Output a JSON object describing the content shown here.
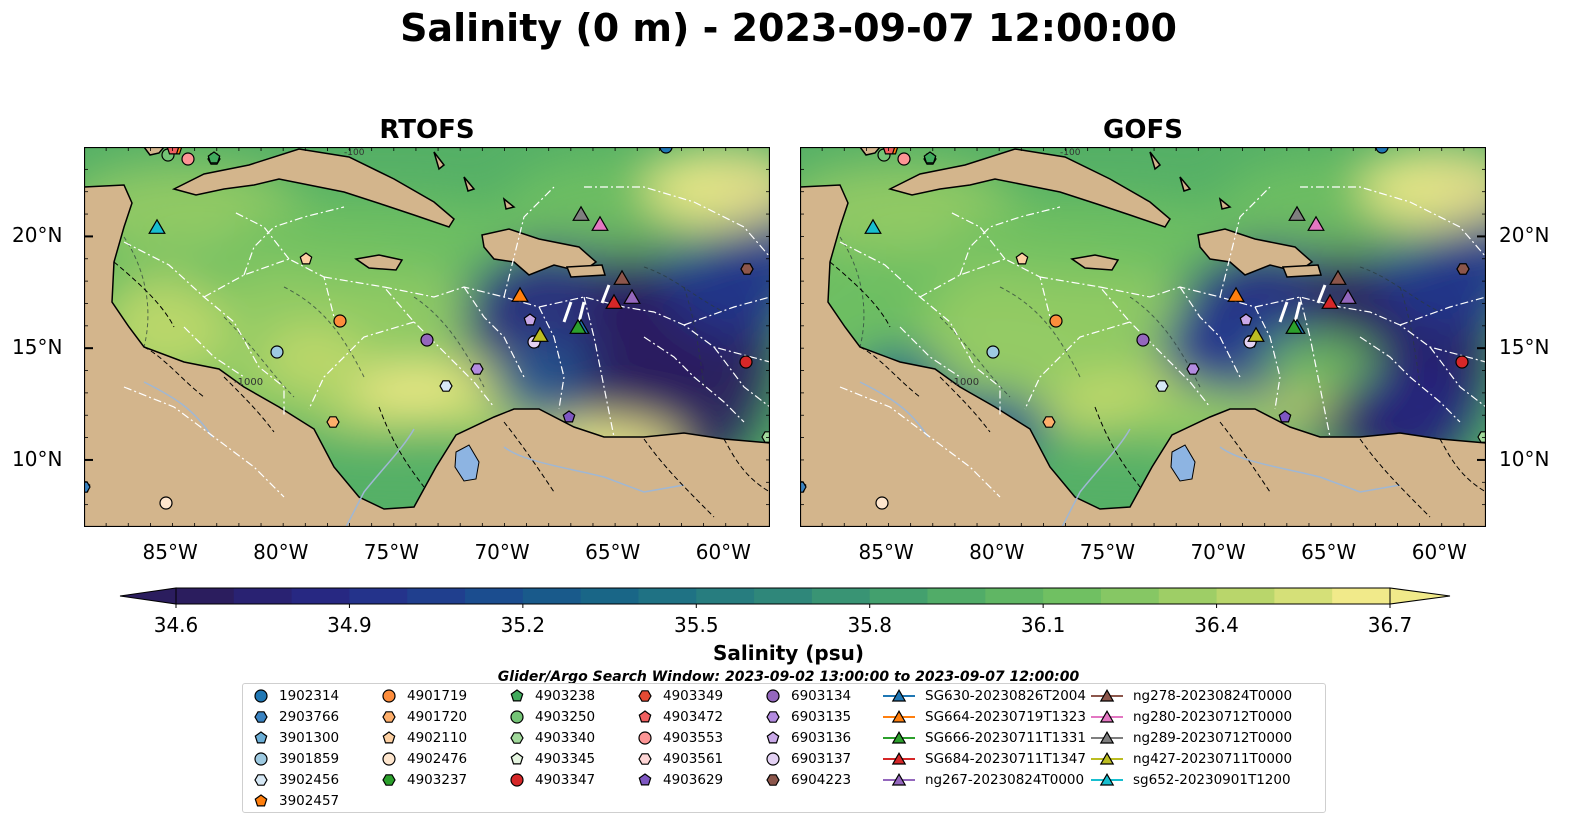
{
  "title": "Salinity (0 m) - 2023-09-07 12:00:00",
  "panels": [
    {
      "title": "RTOFS"
    },
    {
      "title": "GOFS"
    }
  ],
  "lon_ticks": [
    "85°W",
    "80°W",
    "75°W",
    "70°W",
    "65°W",
    "60°W"
  ],
  "lat_ticks": [
    "20°N",
    "15°N",
    "10°N"
  ],
  "colorbar": {
    "label": "Salinity (psu)",
    "ticks": [
      "34.6",
      "34.9",
      "35.2",
      "35.5",
      "35.8",
      "36.1",
      "36.4",
      "36.7"
    ],
    "range": [
      34.6,
      36.7
    ],
    "colormap": [
      "#2b1d5e",
      "#28257f",
      "#23368e",
      "#1b4d8f",
      "#176288",
      "#217683",
      "#2f877a",
      "#3f9c70",
      "#55b066",
      "#70c062",
      "#95cb65",
      "#c2d96c",
      "#f1ea8a"
    ]
  },
  "depth_contour_labels": [
    "-1000",
    "-100"
  ],
  "search_window": "Glider/Argo Search Window: 2023-09-02 13:00:00 to 2023-09-07 12:00:00",
  "colors": {
    "land": "#d3b58c",
    "lake": "#8db4e2",
    "river": "#9fb7d4",
    "coast": "#000000",
    "eez": "#ffffff"
  },
  "legend": {
    "columns": [
      [
        {
          "label": "1902314",
          "marker": "circle",
          "color": "#1f77b4"
        },
        {
          "label": "2903766",
          "marker": "hexagon",
          "color": "#3a83c1"
        },
        {
          "label": "3901300",
          "marker": "pentagon",
          "color": "#6baed6"
        },
        {
          "label": "3901859",
          "marker": "circle",
          "color": "#9ecae1"
        },
        {
          "label": "3902456",
          "marker": "hexagon",
          "color": "#d6e8f5"
        },
        {
          "label": "3902457",
          "marker": "pentagon",
          "color": "#ff7f0e"
        }
      ],
      [
        {
          "label": "4901719",
          "marker": "circle",
          "color": "#fd8d3c"
        },
        {
          "label": "4901720",
          "marker": "hexagon",
          "color": "#fdae6b"
        },
        {
          "label": "4902110",
          "marker": "pentagon",
          "color": "#fdd0a2"
        },
        {
          "label": "4902476",
          "marker": "circle",
          "color": "#fee6ce"
        },
        {
          "label": "4903237",
          "marker": "hexagon",
          "color": "#2ca02c"
        }
      ],
      [
        {
          "label": "4903238",
          "marker": "pentagon",
          "color": "#41ab5d"
        },
        {
          "label": "4903250",
          "marker": "circle",
          "color": "#74c476"
        },
        {
          "label": "4903340",
          "marker": "hexagon",
          "color": "#a1d99b"
        },
        {
          "label": "4903345",
          "marker": "pentagon",
          "color": "#e5f5e0"
        },
        {
          "label": "4903347",
          "marker": "circle",
          "color": "#d62728"
        }
      ],
      [
        {
          "label": "4903349",
          "marker": "hexagon",
          "color": "#e34a33"
        },
        {
          "label": "4903472",
          "marker": "pentagon",
          "color": "#f06060"
        },
        {
          "label": "4903553",
          "marker": "circle",
          "color": "#fc9595"
        },
        {
          "label": "4903561",
          "marker": "hexagon",
          "color": "#fdd5d5"
        },
        {
          "label": "4903629",
          "marker": "pentagon",
          "color": "#7e57c2"
        }
      ],
      [
        {
          "label": "6903134",
          "marker": "circle",
          "color": "#9467bd"
        },
        {
          "label": "6903135",
          "marker": "hexagon",
          "color": "#b38be0"
        },
        {
          "label": "6903136",
          "marker": "pentagon",
          "color": "#c9a9e8"
        },
        {
          "label": "6903137",
          "marker": "circle",
          "color": "#e3d1f3"
        },
        {
          "label": "6904223",
          "marker": "hexagon",
          "color": "#8c564b"
        }
      ],
      [
        {
          "label": "SG630-20230826T2004",
          "marker": "triangle",
          "color": "#1f77b4"
        },
        {
          "label": "SG664-20230719T1323",
          "marker": "triangle",
          "color": "#ff7f0e"
        },
        {
          "label": "SG666-20230711T1331",
          "marker": "triangle",
          "color": "#2ca02c"
        },
        {
          "label": "SG684-20230711T1347",
          "marker": "triangle",
          "color": "#d62728"
        },
        {
          "label": "ng267-20230824T0000",
          "marker": "triangle",
          "color": "#9467bd"
        }
      ],
      [
        {
          "label": "ng278-20230824T0000",
          "marker": "triangle",
          "color": "#8c564b"
        },
        {
          "label": "ng280-20230712T0000",
          "marker": "triangle",
          "color": "#e377c2"
        },
        {
          "label": "ng289-20230712T0000",
          "marker": "triangle",
          "color": "#7f7f7f"
        },
        {
          "label": "ng427-20230711T0000",
          "marker": "triangle",
          "color": "#bcbd22"
        },
        {
          "label": "sg652-20230901T1200",
          "marker": "triangle",
          "color": "#17becf"
        }
      ]
    ]
  }
}
